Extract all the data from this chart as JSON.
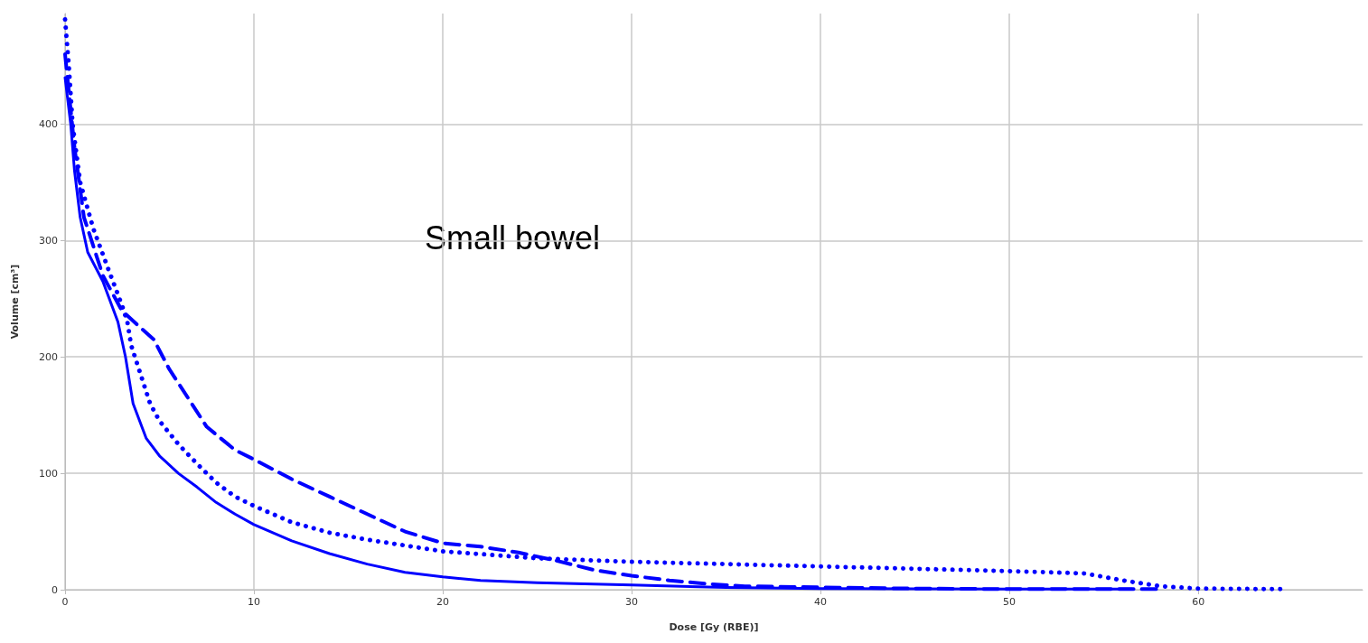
{
  "chart_data": {
    "type": "line",
    "xlabel": "Dose [Gy (RBE)]",
    "ylabel": "Volume [cm³]",
    "annotations": [
      "Small bowel"
    ],
    "xlim": [
      0,
      68.7
    ],
    "xticks": [
      0,
      10,
      20,
      30,
      40,
      50,
      60
    ],
    "ylim": [
      0,
      495
    ],
    "yticks": [
      0,
      100,
      200,
      300,
      400
    ],
    "grid": true,
    "marker": "none",
    "series": [
      {
        "color": "#0000ff",
        "line_style": "solid",
        "x": [
          0,
          0.3,
          0.5,
          0.8,
          1.2,
          2,
          2.8,
          3.2,
          3.6,
          4.3,
          5,
          6,
          7,
          8,
          9,
          10,
          12,
          14,
          16,
          18,
          20,
          22,
          25,
          30,
          35,
          40,
          50,
          56.5
        ],
        "values": [
          440,
          400,
          360,
          320,
          290,
          265,
          230,
          200,
          160,
          130,
          115,
          100,
          88,
          75,
          65,
          56,
          42,
          31,
          22,
          15,
          11,
          8,
          6,
          4,
          2,
          1,
          0.5,
          0.5
        ]
      },
      {
        "color": "#0000ff",
        "line_style": "dashed",
        "x": [
          0,
          0.5,
          1,
          2,
          3,
          4,
          4.7,
          5.5,
          6.5,
          7.5,
          9,
          10,
          12,
          14,
          16,
          18,
          20,
          22,
          24,
          26,
          28,
          30,
          32,
          34,
          36,
          40,
          45,
          50,
          58
        ],
        "values": [
          460,
          380,
          320,
          270,
          240,
          225,
          215,
          190,
          165,
          140,
          120,
          112,
          95,
          80,
          65,
          50,
          40,
          37,
          32,
          25,
          17,
          12,
          8,
          5,
          3,
          2,
          1,
          0.5,
          0.5
        ]
      },
      {
        "color": "#0000ff",
        "line_style": "dotted",
        "x": [
          0,
          0.2,
          0.4,
          0.8,
          1.5,
          2.3,
          3,
          3.3,
          3.5,
          4,
          4.5,
          5,
          6,
          7,
          8,
          9,
          10,
          12,
          14,
          16,
          18,
          20,
          25,
          30,
          40,
          50,
          54,
          56,
          58,
          60,
          64.5
        ],
        "values": [
          490,
          450,
          400,
          350,
          310,
          275,
          245,
          230,
          210,
          185,
          160,
          145,
          125,
          108,
          92,
          80,
          72,
          58,
          49,
          43,
          38,
          33,
          27,
          24,
          20,
          16,
          14,
          8,
          3,
          1,
          0.5
        ]
      }
    ]
  }
}
